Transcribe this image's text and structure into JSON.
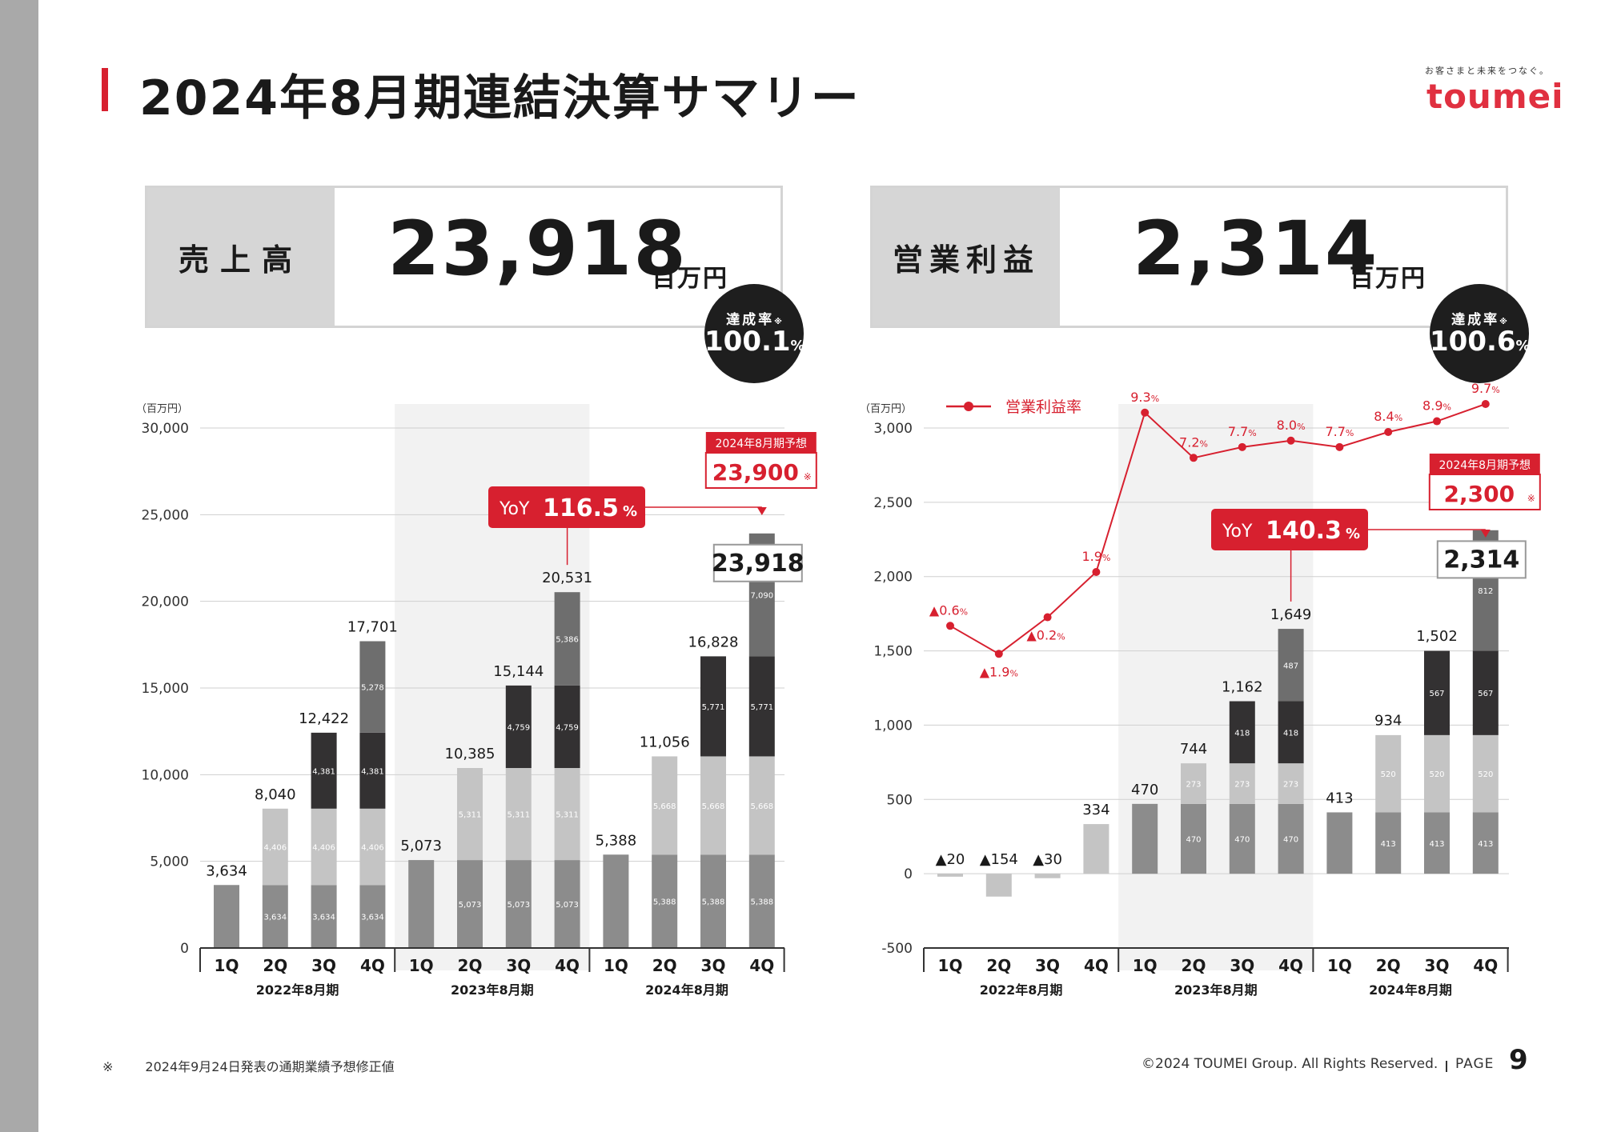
{
  "header": {
    "title": "2024年8月期連結決算サマリー",
    "logo_tagline": "お客さまと未来をつなぐ。",
    "logo_text": "toumei"
  },
  "kpis": [
    {
      "label": "売上高",
      "value": "23,918",
      "unit": "百万円",
      "rate_label": "達成率",
      "rate_mark": "※",
      "rate_value": "100.1",
      "rate_unit": "%"
    },
    {
      "label": "営業利益",
      "value": "2,314",
      "unit": "百万円",
      "rate_label": "達成率",
      "rate_mark": "※",
      "rate_value": "100.6",
      "rate_unit": "%"
    }
  ],
  "chart_data": [
    {
      "type": "bar",
      "stacked": true,
      "unit_label": "（百万円）",
      "ylim": [
        0,
        30000
      ],
      "yticks": [
        0,
        5000,
        10000,
        15000,
        20000,
        25000,
        30000
      ],
      "ytick_labels": [
        "0",
        "5,000",
        "10,000",
        "15,000",
        "20,000",
        "25,000",
        "30,000"
      ],
      "quarters": [
        "1Q",
        "2Q",
        "3Q",
        "4Q",
        "1Q",
        "2Q",
        "3Q",
        "4Q",
        "1Q",
        "2Q",
        "3Q",
        "4Q"
      ],
      "years": [
        "2022年8月期",
        "2023年8月期",
        "2024年8月期"
      ],
      "highlight_year_index": 1,
      "segment_colors": [
        "#8c8c8c",
        "#c4c4c4",
        "#333132",
        "#6e6e6e"
      ],
      "stacks": [
        [
          3634
        ],
        [
          3634,
          4406
        ],
        [
          3634,
          4406,
          4381
        ],
        [
          3634,
          4406,
          4381,
          5278
        ],
        [
          5073
        ],
        [
          5073,
          5311
        ],
        [
          5073,
          5311,
          4759
        ],
        [
          5073,
          5311,
          4759,
          5386
        ],
        [
          5388
        ],
        [
          5388,
          5668
        ],
        [
          5388,
          5668,
          5771
        ],
        [
          5388,
          5668,
          5771,
          7090
        ]
      ],
      "segment_labels": [
        [],
        [
          "3,634",
          "4,406"
        ],
        [
          "3,634",
          "4,406",
          "4,381"
        ],
        [
          "3,634",
          "4,406",
          "4,381",
          "5,278"
        ],
        [],
        [
          "5,073",
          "5,311"
        ],
        [
          "5,073",
          "5,311",
          "4,759"
        ],
        [
          "5,073",
          "5,311",
          "4,759",
          "5,386"
        ],
        [],
        [
          "5,388",
          "5,668"
        ],
        [
          "5,388",
          "5,668",
          "5,771"
        ],
        [
          "5,388",
          "5,668",
          "5,771",
          "7,090"
        ]
      ],
      "totals": [
        3634,
        8040,
        12422,
        17701,
        5073,
        10385,
        15144,
        20531,
        5388,
        11056,
        16828,
        23918
      ],
      "total_labels": [
        "3,634",
        "8,040",
        "12,422",
        "17,701",
        "5,073",
        "10,385",
        "15,144",
        "20,531",
        "5,388",
        "11,056",
        "16,828",
        ""
      ],
      "final_total_label": "23,918",
      "yoy_label": "YoY",
      "yoy_value": "116.5",
      "yoy_unit": "%",
      "forecast_label": "2024年8月期予想",
      "forecast_value": "23,900",
      "forecast_mark": "※"
    },
    {
      "type": "bar",
      "stacked": true,
      "unit_label": "（百万円）",
      "ylim": [
        -500,
        3000
      ],
      "yticks": [
        -500,
        0,
        500,
        1000,
        1500,
        2000,
        2500,
        3000
      ],
      "ytick_labels": [
        "-500",
        "0",
        "500",
        "1,000",
        "1,500",
        "2,000",
        "2,500",
        "3,000"
      ],
      "quarters": [
        "1Q",
        "2Q",
        "3Q",
        "4Q",
        "1Q",
        "2Q",
        "3Q",
        "4Q",
        "1Q",
        "2Q",
        "3Q",
        "4Q"
      ],
      "years": [
        "2022年8月期",
        "2023年8月期",
        "2024年8月期"
      ],
      "highlight_year_index": 1,
      "segment_colors": [
        "#8c8c8c",
        "#c4c4c4",
        "#333132",
        "#6e6e6e"
      ],
      "stacks": [
        [
          -20
        ],
        [
          -154
        ],
        [
          -30
        ],
        [
          334
        ],
        [
          470
        ],
        [
          470,
          273
        ],
        [
          470,
          273,
          418
        ],
        [
          470,
          273,
          418,
          487
        ],
        [
          413
        ],
        [
          413,
          520
        ],
        [
          413,
          520,
          567
        ],
        [
          413,
          520,
          567,
          812
        ]
      ],
      "single_colors": [
        "#c4c4c4",
        "#c4c4c4",
        "#c4c4c4",
        "#c4c4c4",
        "#8c8c8c",
        null,
        null,
        null,
        "#8c8c8c",
        null,
        null,
        null
      ],
      "segment_labels": [
        [],
        [],
        [],
        [],
        [],
        [
          "470",
          "273"
        ],
        [
          "470",
          "273",
          "418"
        ],
        [
          "470",
          "273",
          "418",
          "487"
        ],
        [],
        [
          "413",
          "520"
        ],
        [
          "413",
          "520",
          "567"
        ],
        [
          "413",
          "520",
          "567",
          "812"
        ]
      ],
      "totals": [
        -20,
        -154,
        -30,
        334,
        470,
        744,
        1162,
        1649,
        413,
        934,
        1502,
        2314
      ],
      "total_labels": [
        "▲20",
        "▲154",
        "▲30",
        "334",
        "470",
        "744",
        "1,162",
        "1,649",
        "413",
        "934",
        "1,502",
        ""
      ],
      "final_total_label": "2,314",
      "line": {
        "name": "営業利益率",
        "color": "#d7202f",
        "ylim": [
          -2,
          11
        ],
        "values": [
          -0.6,
          -1.9,
          -0.2,
          1.9,
          9.3,
          7.2,
          7.7,
          8.0,
          7.7,
          8.4,
          8.9,
          9.7
        ],
        "labels": [
          "▲0.6",
          "▲1.9",
          "▲0.2",
          "1.9",
          "9.3",
          "7.2",
          "7.7",
          "8.0",
          "7.7",
          "8.4",
          "8.9",
          "9.7"
        ],
        "unit": "%"
      },
      "yoy_label": "YoY",
      "yoy_value": "140.3",
      "yoy_unit": "%",
      "forecast_label": "2024年8月期予想",
      "forecast_value": "2,300",
      "forecast_mark": "※"
    }
  ],
  "footer": {
    "note_mark": "※",
    "note": "2024年9月24日発表の通期業績予想修正値",
    "copyright": "©2024 TOUMEI Group. All Rights Reserved.",
    "page_label": "PAGE",
    "page_number": "9"
  }
}
